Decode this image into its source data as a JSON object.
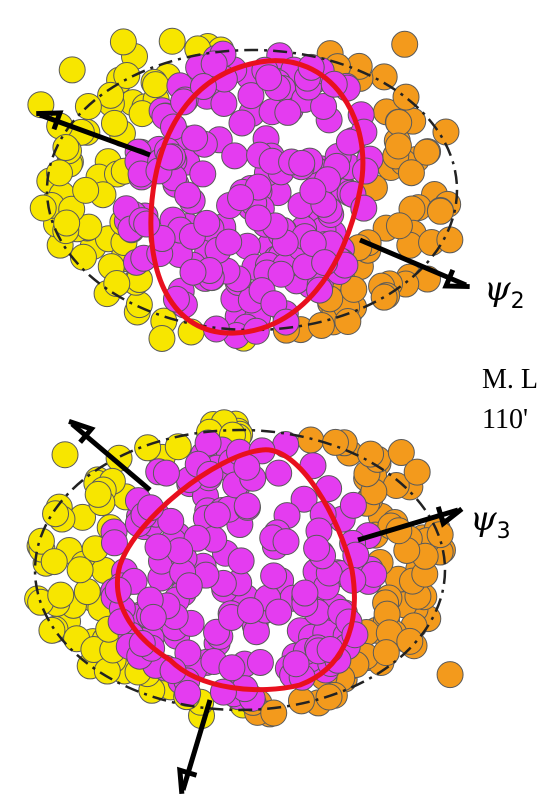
{
  "top_panel": {
    "psi_symbol": "ψ",
    "psi_subscript": "2"
  },
  "bottom_panel": {
    "psi_symbol": "ψ",
    "psi_subscript": "3"
  },
  "side_text": {
    "line1": "M. L",
    "line2": "110'"
  }
}
